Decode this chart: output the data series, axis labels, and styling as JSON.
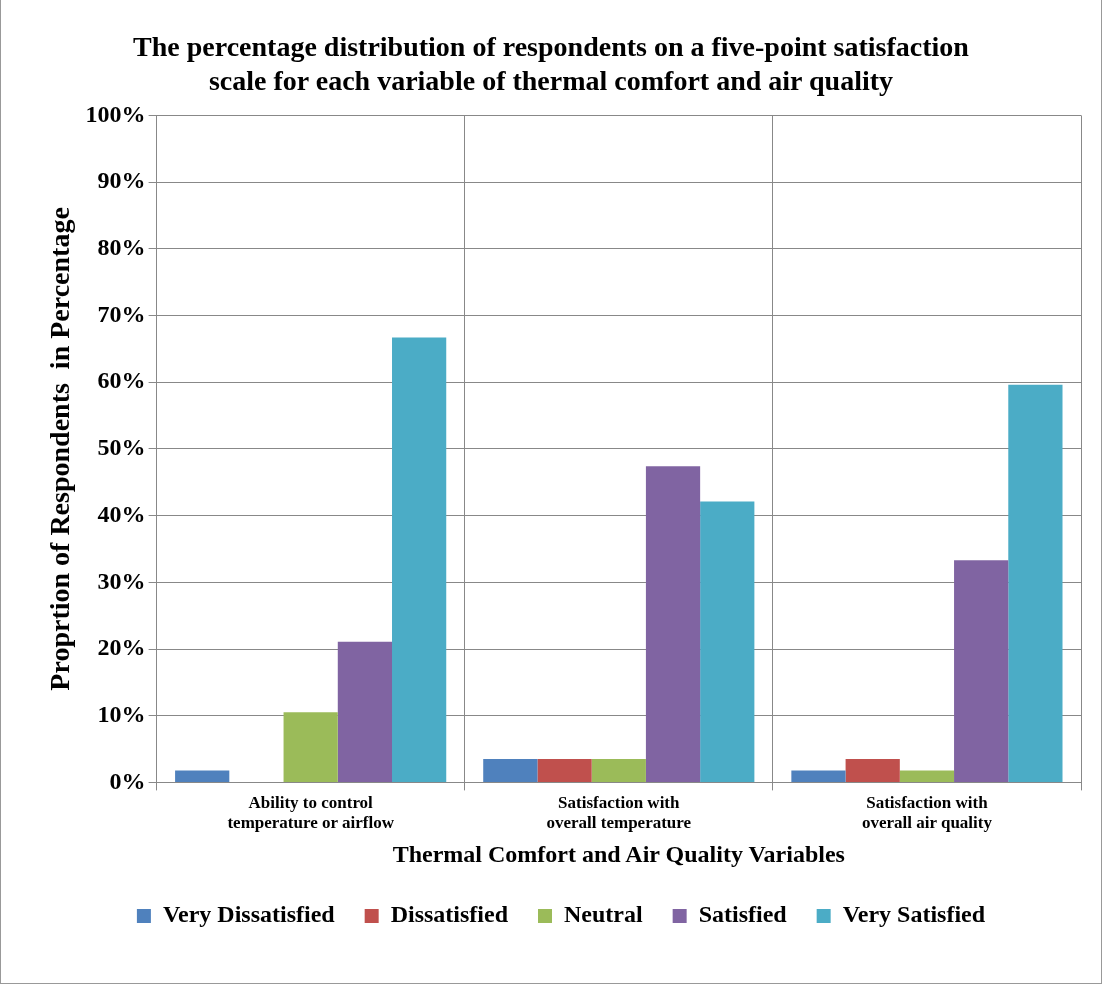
{
  "chart_data": {
    "type": "bar",
    "title": "The percentage distribution of respondents on a five-point satisfaction scale for each variable of thermal comfort and air quality",
    "xlabel": "Thermal Comfort and Air Quality Variables",
    "ylabel": "Proprtion of Respondents  in Percentage",
    "categories": [
      "Ability to control temperature or airflow",
      "Satisfaction with overall temperature",
      "Satisfaction with overall air quality"
    ],
    "series": [
      {
        "name": "Very Dissatisfied",
        "color": "#4f81bd",
        "values": [
          1.8,
          3.5,
          1.8
        ]
      },
      {
        "name": "Dissatisfied",
        "color": "#c0504d",
        "values": [
          0,
          3.5,
          3.5
        ]
      },
      {
        "name": "Neutral",
        "color": "#9bbb59",
        "values": [
          10.5,
          3.5,
          1.8
        ]
      },
      {
        "name": "Satisfied",
        "color": "#8064a2",
        "values": [
          21.1,
          47.4,
          33.3
        ]
      },
      {
        "name": "Very Satisfied",
        "color": "#4bacc6",
        "values": [
          66.7,
          42.1,
          59.6
        ]
      }
    ],
    "ylim": [
      0,
      100
    ],
    "yticks": [
      {
        "value": 0,
        "label": "0%"
      },
      {
        "value": 10,
        "label": "10%"
      },
      {
        "value": 20,
        "label": "20%"
      },
      {
        "value": 30,
        "label": "30%"
      },
      {
        "value": 40,
        "label": "40%"
      },
      {
        "value": 50,
        "label": "50%"
      },
      {
        "value": 60,
        "label": "60%"
      },
      {
        "value": 70,
        "label": "70%"
      },
      {
        "value": 80,
        "label": "80%"
      },
      {
        "value": 90,
        "label": "90%"
      },
      {
        "value": 100,
        "label": "100%"
      }
    ],
    "grid": true,
    "legend": "bottom"
  }
}
